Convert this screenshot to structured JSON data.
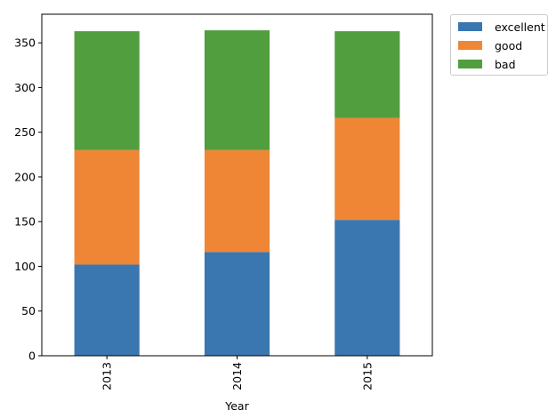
{
  "chart_data": {
    "type": "bar",
    "stacked": true,
    "categories": [
      "2013",
      "2014",
      "2015"
    ],
    "series": [
      {
        "name": "excellent",
        "values": [
          102,
          116,
          152
        ],
        "color": "#3a76af"
      },
      {
        "name": "good",
        "values": [
          128,
          114,
          114
        ],
        "color": "#ef8636"
      },
      {
        "name": "bad",
        "values": [
          133,
          134,
          97
        ],
        "color": "#519e3e"
      }
    ],
    "title": "",
    "xlabel": "Year",
    "ylabel": "",
    "ylim": [
      0,
      382
    ],
    "yticks": [
      0,
      50,
      100,
      150,
      200,
      250,
      300,
      350
    ],
    "grid": false,
    "legend_position": "outside top-right"
  }
}
